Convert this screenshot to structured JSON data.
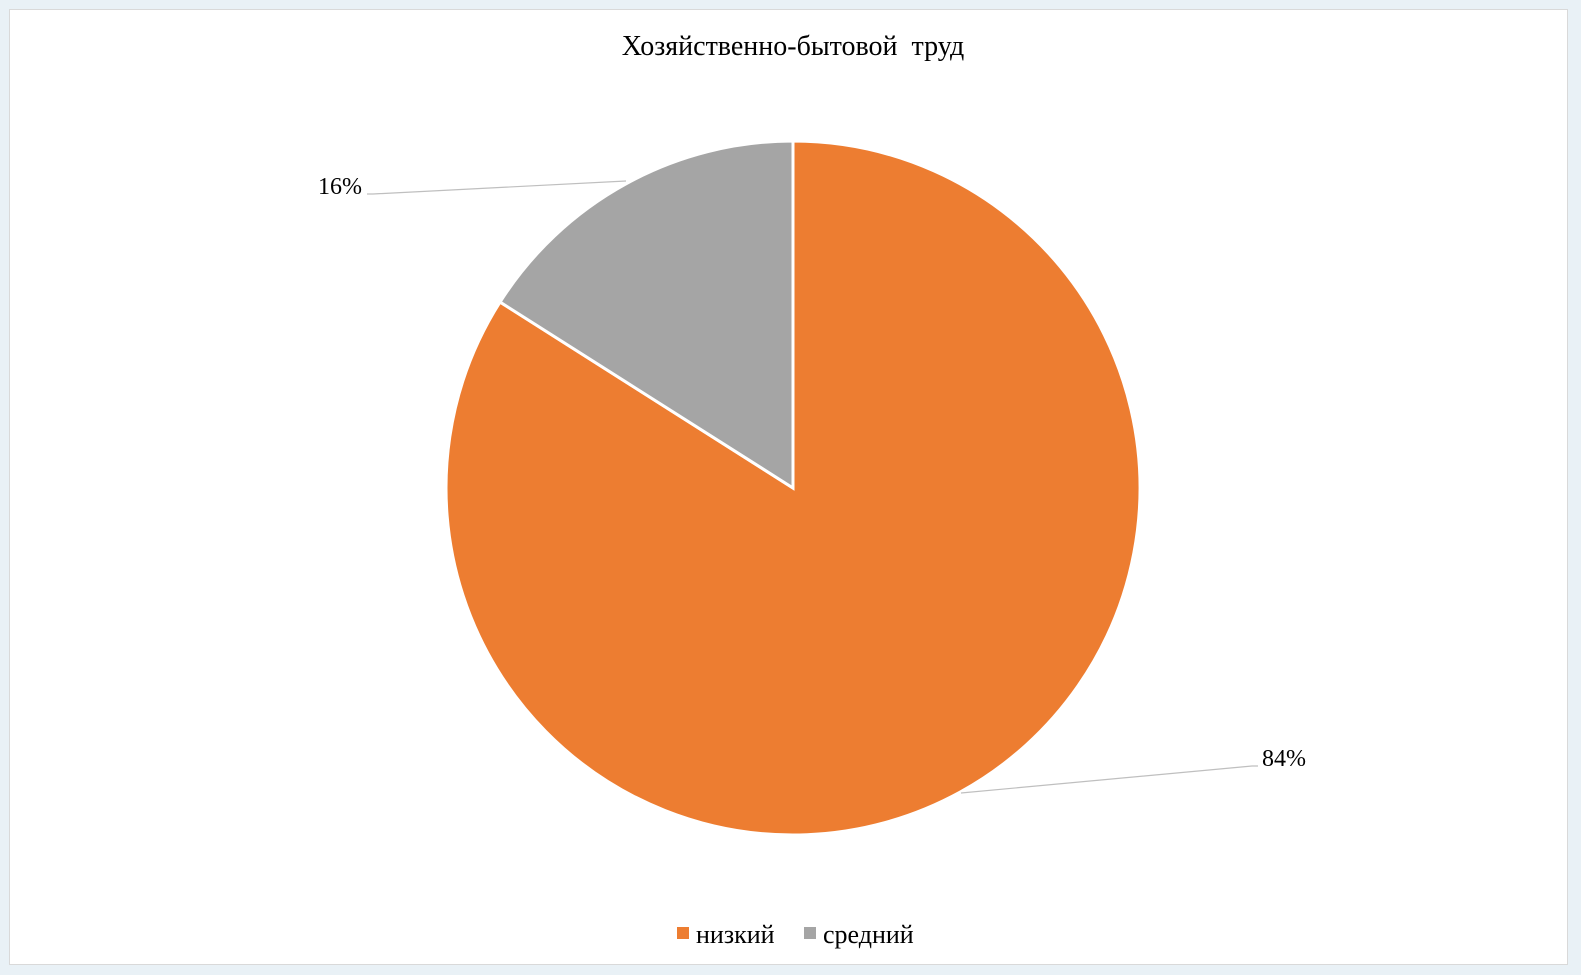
{
  "chart_data": {
    "type": "pie",
    "title": "Хозяйственно-бытовой  труд",
    "categories": [
      "низкий",
      "средний"
    ],
    "values": [
      84,
      16
    ],
    "data_labels": [
      "84%",
      "16%"
    ],
    "colors": [
      "#ED7D31",
      "#A5A5A5"
    ],
    "legend_position": "bottom"
  }
}
